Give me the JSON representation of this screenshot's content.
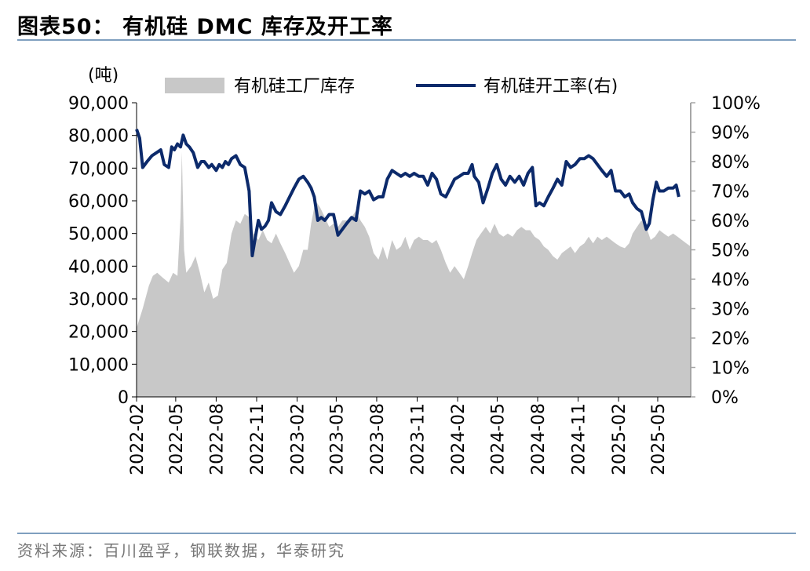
{
  "title": "图表50：  有机硅 DMC 库存及开工率",
  "source": "资料来源：百川盈孚，钢联数据，华泰研究",
  "chart_data": {
    "type": "area",
    "y_left_unit": "(吨)",
    "y_left_ticks": [
      "90,000",
      "80,000",
      "70,000",
      "60,000",
      "50,000",
      "40,000",
      "30,000",
      "20,000",
      "10,000",
      "0"
    ],
    "y_left_range": [
      0,
      90000
    ],
    "y_right_ticks": [
      "100%",
      "90%",
      "80%",
      "70%",
      "60%",
      "50%",
      "40%",
      "30%",
      "20%",
      "10%",
      "0%"
    ],
    "y_right_range": [
      0,
      100
    ],
    "x_tick_labels": [
      "2022-02",
      "2022-05",
      "2022-08",
      "2022-11",
      "2023-02",
      "2023-05",
      "2023-08",
      "2023-11",
      "2024-02",
      "2024-05",
      "2024-08",
      "2024-11",
      "2025-02",
      "2025-05"
    ],
    "x_start": "2022-02-01",
    "x_end": "2025-07-15",
    "legend": [
      "有机硅工厂库存",
      "有机硅开工率(右)"
    ],
    "legend_position": "top",
    "colors": {
      "inventory": "#c8c8c8",
      "utilization": "#0c2a6b"
    },
    "series": [
      {
        "name": "有机硅工厂库存",
        "axis": "left",
        "points": [
          [
            "2022-02-01",
            21000
          ],
          [
            "2022-02-15",
            27000
          ],
          [
            "2022-03-01",
            34000
          ],
          [
            "2022-03-10",
            37000
          ],
          [
            "2022-03-20",
            38000
          ],
          [
            "2022-04-01",
            36500
          ],
          [
            "2022-04-15",
            35000
          ],
          [
            "2022-04-25",
            38000
          ],
          [
            "2022-05-05",
            37000
          ],
          [
            "2022-05-12",
            55000
          ],
          [
            "2022-05-15",
            75000
          ],
          [
            "2022-05-20",
            45000
          ],
          [
            "2022-05-25",
            38000
          ],
          [
            "2022-06-05",
            40000
          ],
          [
            "2022-06-15",
            43000
          ],
          [
            "2022-06-25",
            38000
          ],
          [
            "2022-07-05",
            32000
          ],
          [
            "2022-07-15",
            35000
          ],
          [
            "2022-07-25",
            30000
          ],
          [
            "2022-08-05",
            31000
          ],
          [
            "2022-08-15",
            39000
          ],
          [
            "2022-08-25",
            41000
          ],
          [
            "2022-09-05",
            50000
          ],
          [
            "2022-09-15",
            54000
          ],
          [
            "2022-09-25",
            53000
          ],
          [
            "2022-10-05",
            56000
          ],
          [
            "2022-10-15",
            55000
          ],
          [
            "2022-10-25",
            50000
          ],
          [
            "2022-11-05",
            48000
          ],
          [
            "2022-11-15",
            51000
          ],
          [
            "2022-11-25",
            48000
          ],
          [
            "2022-12-05",
            47000
          ],
          [
            "2022-12-15",
            50000
          ],
          [
            "2022-12-25",
            47000
          ],
          [
            "2023-01-05",
            44000
          ],
          [
            "2023-01-15",
            41000
          ],
          [
            "2023-01-25",
            38000
          ],
          [
            "2023-02-05",
            40000
          ],
          [
            "2023-02-15",
            45000
          ],
          [
            "2023-02-25",
            45000
          ],
          [
            "2023-03-05",
            53000
          ],
          [
            "2023-03-15",
            60000
          ],
          [
            "2023-03-25",
            58000
          ],
          [
            "2023-04-05",
            55000
          ],
          [
            "2023-04-15",
            52000
          ],
          [
            "2023-04-25",
            53000
          ],
          [
            "2023-05-05",
            52000
          ],
          [
            "2023-05-15",
            54000
          ],
          [
            "2023-05-25",
            54000
          ],
          [
            "2023-06-05",
            55000
          ],
          [
            "2023-06-15",
            57000
          ],
          [
            "2023-06-25",
            54000
          ],
          [
            "2023-07-05",
            52000
          ],
          [
            "2023-07-15",
            49000
          ],
          [
            "2023-07-25",
            44000
          ],
          [
            "2023-08-05",
            42000
          ],
          [
            "2023-08-15",
            46000
          ],
          [
            "2023-08-25",
            42000
          ],
          [
            "2023-09-05",
            48000
          ],
          [
            "2023-09-15",
            45000
          ],
          [
            "2023-09-25",
            46000
          ],
          [
            "2023-10-05",
            49000
          ],
          [
            "2023-10-15",
            45000
          ],
          [
            "2023-10-25",
            48000
          ],
          [
            "2023-11-05",
            49000
          ],
          [
            "2023-11-15",
            48000
          ],
          [
            "2023-11-25",
            48000
          ],
          [
            "2023-12-05",
            47000
          ],
          [
            "2023-12-15",
            48000
          ],
          [
            "2023-12-25",
            45000
          ],
          [
            "2024-01-05",
            41000
          ],
          [
            "2024-01-15",
            38000
          ],
          [
            "2024-01-25",
            40000
          ],
          [
            "2024-02-05",
            38000
          ],
          [
            "2024-02-15",
            36000
          ],
          [
            "2024-02-25",
            40000
          ],
          [
            "2024-03-05",
            44000
          ],
          [
            "2024-03-15",
            48000
          ],
          [
            "2024-03-25",
            50000
          ],
          [
            "2024-04-05",
            52000
          ],
          [
            "2024-04-15",
            50000
          ],
          [
            "2024-04-25",
            53000
          ],
          [
            "2024-05-05",
            50000
          ],
          [
            "2024-05-15",
            49000
          ],
          [
            "2024-05-25",
            50000
          ],
          [
            "2024-06-05",
            49000
          ],
          [
            "2024-06-15",
            51000
          ],
          [
            "2024-06-25",
            52000
          ],
          [
            "2024-07-05",
            51000
          ],
          [
            "2024-07-15",
            51000
          ],
          [
            "2024-07-25",
            49000
          ],
          [
            "2024-08-05",
            48000
          ],
          [
            "2024-08-15",
            46000
          ],
          [
            "2024-08-25",
            45000
          ],
          [
            "2024-09-05",
            43000
          ],
          [
            "2024-09-15",
            42000
          ],
          [
            "2024-09-25",
            44000
          ],
          [
            "2024-10-05",
            45000
          ],
          [
            "2024-10-15",
            46000
          ],
          [
            "2024-10-25",
            44000
          ],
          [
            "2024-11-05",
            46000
          ],
          [
            "2024-11-15",
            47000
          ],
          [
            "2024-11-25",
            49000
          ],
          [
            "2024-12-05",
            47000
          ],
          [
            "2024-12-15",
            49000
          ],
          [
            "2024-12-25",
            48000
          ],
          [
            "2025-01-05",
            49000
          ],
          [
            "2025-01-15",
            48000
          ],
          [
            "2025-01-25",
            47000
          ],
          [
            "2025-02-05",
            46000
          ],
          [
            "2025-02-15",
            45500
          ],
          [
            "2025-02-25",
            47000
          ],
          [
            "2025-03-05",
            50000
          ],
          [
            "2025-03-15",
            52000
          ],
          [
            "2025-03-25",
            54000
          ],
          [
            "2025-04-05",
            52000
          ],
          [
            "2025-04-15",
            48000
          ],
          [
            "2025-04-25",
            49000
          ],
          [
            "2025-05-05",
            51000
          ],
          [
            "2025-05-15",
            50000
          ],
          [
            "2025-05-25",
            49000
          ],
          [
            "2025-06-05",
            50000
          ],
          [
            "2025-06-15",
            49000
          ],
          [
            "2025-06-25",
            48000
          ],
          [
            "2025-07-05",
            47000
          ],
          [
            "2025-07-15",
            46000
          ]
        ]
      },
      {
        "name": "有机硅开工率(右)",
        "axis": "right",
        "points": [
          [
            "2022-02-01",
            91
          ],
          [
            "2022-02-08",
            88
          ],
          [
            "2022-02-15",
            78
          ],
          [
            "2022-02-25",
            80
          ],
          [
            "2022-03-08",
            82
          ],
          [
            "2022-03-18",
            83
          ],
          [
            "2022-03-28",
            84
          ],
          [
            "2022-04-05",
            79
          ],
          [
            "2022-04-15",
            78
          ],
          [
            "2022-04-22",
            85
          ],
          [
            "2022-04-28",
            84
          ],
          [
            "2022-05-05",
            86
          ],
          [
            "2022-05-12",
            85
          ],
          [
            "2022-05-18",
            89
          ],
          [
            "2022-05-25",
            86
          ],
          [
            "2022-06-01",
            85
          ],
          [
            "2022-06-10",
            83
          ],
          [
            "2022-06-20",
            78
          ],
          [
            "2022-06-28",
            80
          ],
          [
            "2022-07-05",
            80
          ],
          [
            "2022-07-15",
            78
          ],
          [
            "2022-07-22",
            79
          ],
          [
            "2022-08-01",
            77
          ],
          [
            "2022-08-08",
            79
          ],
          [
            "2022-08-15",
            78
          ],
          [
            "2022-08-22",
            80
          ],
          [
            "2022-08-29",
            79
          ],
          [
            "2022-09-05",
            81
          ],
          [
            "2022-09-15",
            82
          ],
          [
            "2022-09-25",
            79
          ],
          [
            "2022-10-05",
            78
          ],
          [
            "2022-10-15",
            70
          ],
          [
            "2022-10-22",
            48
          ],
          [
            "2022-10-30",
            55
          ],
          [
            "2022-11-05",
            60
          ],
          [
            "2022-11-12",
            57
          ],
          [
            "2022-11-20",
            58
          ],
          [
            "2022-11-28",
            60
          ],
          [
            "2022-12-05",
            66
          ],
          [
            "2022-12-15",
            63
          ],
          [
            "2022-12-25",
            62
          ],
          [
            "2023-01-05",
            65
          ],
          [
            "2023-01-15",
            68
          ],
          [
            "2023-01-25",
            71
          ],
          [
            "2023-02-05",
            74
          ],
          [
            "2023-02-15",
            75
          ],
          [
            "2023-02-25",
            73
          ],
          [
            "2023-03-05",
            71
          ],
          [
            "2023-03-12",
            68
          ],
          [
            "2023-03-20",
            60
          ],
          [
            "2023-03-28",
            61
          ],
          [
            "2023-04-05",
            60
          ],
          [
            "2023-04-15",
            62
          ],
          [
            "2023-04-25",
            62
          ],
          [
            "2023-05-05",
            55
          ],
          [
            "2023-05-15",
            57
          ],
          [
            "2023-05-25",
            59
          ],
          [
            "2023-06-05",
            61
          ],
          [
            "2023-06-15",
            60
          ],
          [
            "2023-06-25",
            70
          ],
          [
            "2023-07-05",
            69
          ],
          [
            "2023-07-15",
            70
          ],
          [
            "2023-07-25",
            67
          ],
          [
            "2023-08-05",
            68
          ],
          [
            "2023-08-15",
            68
          ],
          [
            "2023-08-25",
            74
          ],
          [
            "2023-09-05",
            77
          ],
          [
            "2023-09-15",
            76
          ],
          [
            "2023-09-25",
            75
          ],
          [
            "2023-10-05",
            76
          ],
          [
            "2023-10-15",
            75
          ],
          [
            "2023-10-25",
            76
          ],
          [
            "2023-11-05",
            75
          ],
          [
            "2023-11-15",
            75
          ],
          [
            "2023-11-25",
            72
          ],
          [
            "2023-12-05",
            76
          ],
          [
            "2023-12-15",
            74
          ],
          [
            "2023-12-25",
            69
          ],
          [
            "2024-01-05",
            68
          ],
          [
            "2024-01-15",
            71
          ],
          [
            "2024-01-25",
            74
          ],
          [
            "2024-02-05",
            75
          ],
          [
            "2024-02-15",
            76
          ],
          [
            "2024-02-25",
            76
          ],
          [
            "2024-03-05",
            79
          ],
          [
            "2024-03-10",
            75
          ],
          [
            "2024-03-20",
            73
          ],
          [
            "2024-03-30",
            66
          ],
          [
            "2024-04-10",
            71
          ],
          [
            "2024-04-20",
            76
          ],
          [
            "2024-04-30",
            79
          ],
          [
            "2024-05-10",
            74
          ],
          [
            "2024-05-20",
            72
          ],
          [
            "2024-05-30",
            75
          ],
          [
            "2024-06-10",
            73
          ],
          [
            "2024-06-20",
            75
          ],
          [
            "2024-06-30",
            72
          ],
          [
            "2024-07-10",
            76
          ],
          [
            "2024-07-20",
            78
          ],
          [
            "2024-07-28",
            65
          ],
          [
            "2024-08-05",
            66
          ],
          [
            "2024-08-15",
            65
          ],
          [
            "2024-08-25",
            68
          ],
          [
            "2024-09-05",
            71
          ],
          [
            "2024-09-15",
            74
          ],
          [
            "2024-09-25",
            72
          ],
          [
            "2024-10-05",
            80
          ],
          [
            "2024-10-15",
            78
          ],
          [
            "2024-10-25",
            79
          ],
          [
            "2024-11-05",
            81
          ],
          [
            "2024-11-15",
            81
          ],
          [
            "2024-11-25",
            82
          ],
          [
            "2024-12-05",
            81
          ],
          [
            "2024-12-15",
            79
          ],
          [
            "2024-12-25",
            77
          ],
          [
            "2025-01-05",
            75
          ],
          [
            "2025-01-15",
            77
          ],
          [
            "2025-01-25",
            70
          ],
          [
            "2025-02-05",
            70
          ],
          [
            "2025-02-15",
            68
          ],
          [
            "2025-02-25",
            69
          ],
          [
            "2025-03-05",
            66
          ],
          [
            "2025-03-15",
            64
          ],
          [
            "2025-03-25",
            63
          ],
          [
            "2025-04-05",
            57
          ],
          [
            "2025-04-12",
            59
          ],
          [
            "2025-04-20",
            67
          ],
          [
            "2025-04-28",
            73
          ],
          [
            "2025-05-05",
            70
          ],
          [
            "2025-05-15",
            70
          ],
          [
            "2025-05-25",
            71
          ],
          [
            "2025-06-05",
            71
          ],
          [
            "2025-06-12",
            72
          ],
          [
            "2025-06-18",
            68
          ]
        ]
      }
    ]
  }
}
